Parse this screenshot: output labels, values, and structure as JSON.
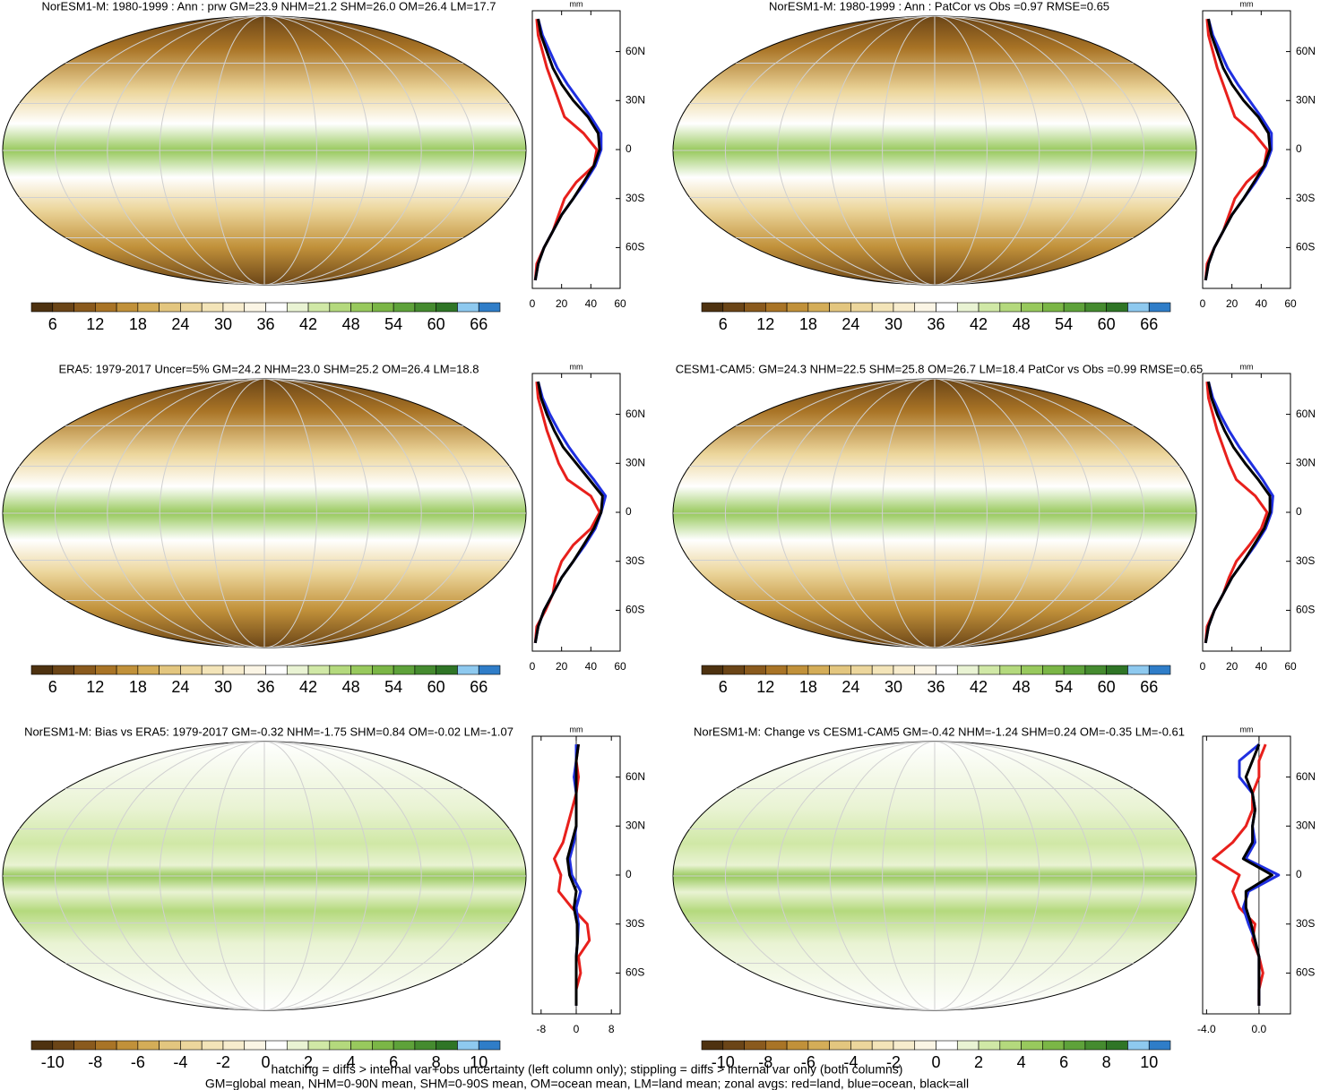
{
  "chart_data": [
    {
      "type": "line",
      "title": "NorESM1-M: 1980-1999 : Ann : prw GM=23.9 NHM=21.2 SHM=26.0 OM=26.4 LM=17.7",
      "unit": "mm",
      "y": [
        -80,
        -70,
        -60,
        -50,
        -40,
        -30,
        -20,
        -10,
        0,
        10,
        20,
        30,
        40,
        50,
        60,
        70,
        80
      ],
      "series": [
        {
          "name": "land",
          "color": "#e8201c",
          "values": [
            2,
            3,
            8,
            14,
            18,
            22,
            30,
            42,
            44,
            35,
            22,
            18,
            14,
            10,
            7,
            4,
            3
          ]
        },
        {
          "name": "ocean",
          "color": "#1f2fe0",
          "values": [
            2,
            4,
            8,
            14,
            20,
            28,
            36,
            43,
            47,
            47,
            40,
            32,
            24,
            17,
            12,
            7,
            4
          ]
        },
        {
          "name": "all",
          "color": "#000000",
          "values": [
            2,
            4,
            8,
            14,
            20,
            28,
            35,
            42,
            46,
            45,
            38,
            28,
            20,
            14,
            10,
            6,
            4
          ]
        }
      ],
      "xlim": [
        0,
        60
      ],
      "xticks": [
        0,
        20,
        40,
        60
      ],
      "ylim": [
        -85,
        85
      ],
      "yticks": [
        {
          "value": 60,
          "label": "60N"
        },
        {
          "value": 30,
          "label": "30N"
        },
        0,
        {
          "value": -30,
          "label": "30S"
        },
        {
          "value": -60,
          "label": "60S"
        }
      ],
      "colorbar": {
        "lim": [
          3,
          69
        ],
        "ticks": [
          6,
          12,
          18,
          24,
          30,
          36,
          42,
          48,
          54,
          60,
          66
        ],
        "colors": [
          "#4e3210",
          "#6b4517",
          "#8a5a1d",
          "#a97426",
          "#c1913a",
          "#d4ad58",
          "#e3c67f",
          "#ecd69c",
          "#f3e4b8",
          "#f7eccd",
          "#fbf5e5",
          "#ffffff",
          "#e9f3d3",
          "#d0e8a6",
          "#b4d97d",
          "#98c95d",
          "#7bb646",
          "#5ea23a",
          "#458b2f",
          "#2f7526",
          "#8ec9ef",
          "#2f7dc8"
        ]
      }
    },
    {
      "type": "line",
      "title": "NorESM1-M: 1980-1999 : Ann : PatCor vs Obs =0.97 RMSE=0.65",
      "unit": "mm",
      "y": [
        -80,
        -70,
        -60,
        -50,
        -40,
        -30,
        -20,
        -10,
        0,
        10,
        20,
        30,
        40,
        50,
        60,
        70,
        80
      ],
      "series": [
        {
          "name": "land",
          "color": "#e8201c",
          "values": [
            2,
            3,
            8,
            14,
            18,
            22,
            30,
            42,
            44,
            35,
            22,
            18,
            14,
            10,
            7,
            4,
            3
          ]
        },
        {
          "name": "ocean",
          "color": "#1f2fe0",
          "values": [
            2,
            4,
            8,
            14,
            20,
            28,
            36,
            43,
            47,
            47,
            40,
            32,
            24,
            17,
            12,
            7,
            4
          ]
        },
        {
          "name": "all",
          "color": "#000000",
          "values": [
            2,
            4,
            8,
            14,
            20,
            28,
            35,
            42,
            46,
            45,
            38,
            28,
            20,
            14,
            10,
            6,
            4
          ]
        }
      ],
      "xlim": [
        0,
        60
      ],
      "xticks": [
        0,
        20,
        40,
        60
      ],
      "ylim": [
        -85,
        85
      ],
      "yticks": [
        {
          "value": 60,
          "label": "60N"
        },
        {
          "value": 30,
          "label": "30N"
        },
        0,
        {
          "value": -30,
          "label": "30S"
        },
        {
          "value": -60,
          "label": "60S"
        }
      ],
      "colorbar": {
        "lim": [
          3,
          69
        ],
        "ticks": [
          6,
          12,
          18,
          24,
          30,
          36,
          42,
          48,
          54,
          60,
          66
        ],
        "colors": [
          "#4e3210",
          "#6b4517",
          "#8a5a1d",
          "#a97426",
          "#c1913a",
          "#d4ad58",
          "#e3c67f",
          "#ecd69c",
          "#f3e4b8",
          "#f7eccd",
          "#fbf5e5",
          "#ffffff",
          "#e9f3d3",
          "#d0e8a6",
          "#b4d97d",
          "#98c95d",
          "#7bb646",
          "#5ea23a",
          "#458b2f",
          "#2f7526",
          "#8ec9ef",
          "#2f7dc8"
        ]
      }
    },
    {
      "type": "line",
      "title": "ERA5: 1979-2017 Uncer=5% GM=24.2 NHM=23.0 SHM=25.2 OM=26.4 LM=18.8",
      "unit": "mm",
      "y": [
        -80,
        -70,
        -60,
        -50,
        -40,
        -30,
        -20,
        -10,
        0,
        10,
        20,
        30,
        40,
        50,
        60,
        70,
        80
      ],
      "series": [
        {
          "name": "land",
          "color": "#e8201c",
          "values": [
            2,
            3,
            9,
            14,
            16,
            20,
            28,
            40,
            46,
            40,
            24,
            18,
            14,
            10,
            7,
            4,
            3
          ]
        },
        {
          "name": "ocean",
          "color": "#1f2fe0",
          "values": [
            2,
            4,
            8,
            14,
            20,
            28,
            36,
            43,
            47,
            50,
            42,
            33,
            25,
            18,
            12,
            7,
            4
          ]
        },
        {
          "name": "all",
          "color": "#000000",
          "values": [
            2,
            4,
            8,
            14,
            20,
            28,
            35,
            42,
            47,
            48,
            39,
            30,
            21,
            15,
            10,
            6,
            4
          ]
        }
      ],
      "xlim": [
        0,
        60
      ],
      "xticks": [
        0,
        20,
        40,
        60
      ],
      "ylim": [
        -85,
        85
      ],
      "yticks": [
        {
          "value": 60,
          "label": "60N"
        },
        {
          "value": 30,
          "label": "30N"
        },
        0,
        {
          "value": -30,
          "label": "30S"
        },
        {
          "value": -60,
          "label": "60S"
        }
      ],
      "colorbar": {
        "lim": [
          3,
          69
        ],
        "ticks": [
          6,
          12,
          18,
          24,
          30,
          36,
          42,
          48,
          54,
          60,
          66
        ],
        "colors": [
          "#4e3210",
          "#6b4517",
          "#8a5a1d",
          "#a97426",
          "#c1913a",
          "#d4ad58",
          "#e3c67f",
          "#ecd69c",
          "#f3e4b8",
          "#f7eccd",
          "#fbf5e5",
          "#ffffff",
          "#e9f3d3",
          "#d0e8a6",
          "#b4d97d",
          "#98c95d",
          "#7bb646",
          "#5ea23a",
          "#458b2f",
          "#2f7526",
          "#8ec9ef",
          "#2f7dc8"
        ]
      }
    },
    {
      "type": "line",
      "title": "CESM1-CAM5: GM=24.3 NHM=22.5 SHM=25.8 OM=26.7 LM=18.4 PatCor vs Obs =0.99 RMSE=0.65",
      "unit": "mm",
      "y": [
        -80,
        -70,
        -60,
        -50,
        -40,
        -30,
        -20,
        -10,
        0,
        10,
        20,
        30,
        40,
        50,
        60,
        70,
        80
      ],
      "series": [
        {
          "name": "land",
          "color": "#e8201c",
          "values": [
            2,
            3,
            8,
            14,
            18,
            23,
            32,
            40,
            44,
            36,
            23,
            18,
            14,
            10,
            7,
            4,
            3
          ]
        },
        {
          "name": "ocean",
          "color": "#1f2fe0",
          "values": [
            2,
            4,
            8,
            14,
            20,
            28,
            36,
            43,
            47,
            48,
            41,
            33,
            25,
            18,
            12,
            7,
            4
          ]
        },
        {
          "name": "all",
          "color": "#000000",
          "values": [
            2,
            4,
            8,
            14,
            20,
            28,
            35,
            42,
            46,
            46,
            38,
            29,
            21,
            15,
            10,
            6,
            4
          ]
        }
      ],
      "xlim": [
        0,
        60
      ],
      "xticks": [
        0,
        20,
        40,
        60
      ],
      "ylim": [
        -85,
        85
      ],
      "yticks": [
        {
          "value": 60,
          "label": "60N"
        },
        {
          "value": 30,
          "label": "30N"
        },
        0,
        {
          "value": -30,
          "label": "30S"
        },
        {
          "value": -60,
          "label": "60S"
        }
      ],
      "colorbar": {
        "lim": [
          3,
          69
        ],
        "ticks": [
          6,
          12,
          18,
          24,
          30,
          36,
          42,
          48,
          54,
          60,
          66
        ],
        "colors": [
          "#4e3210",
          "#6b4517",
          "#8a5a1d",
          "#a97426",
          "#c1913a",
          "#d4ad58",
          "#e3c67f",
          "#ecd69c",
          "#f3e4b8",
          "#f7eccd",
          "#fbf5e5",
          "#ffffff",
          "#e9f3d3",
          "#d0e8a6",
          "#b4d97d",
          "#98c95d",
          "#7bb646",
          "#5ea23a",
          "#458b2f",
          "#2f7526",
          "#8ec9ef",
          "#2f7dc8"
        ]
      }
    },
    {
      "type": "line",
      "title": "NorESM1-M: Bias vs ERA5: 1979-2017 GM=-0.32 NHM=-1.75 SHM=0.84 OM=-0.02 LM=-1.07",
      "unit": "mm",
      "y": [
        -80,
        -70,
        -60,
        -50,
        -40,
        -30,
        -20,
        -10,
        0,
        10,
        20,
        30,
        40,
        50,
        60,
        70,
        80
      ],
      "series": [
        {
          "name": "land",
          "color": "#e8201c",
          "values": [
            0,
            0,
            1,
            0.5,
            3,
            2.5,
            -1,
            -4,
            -3.5,
            -5,
            -3,
            -2,
            -1,
            0,
            0.5,
            0,
            0.5
          ]
        },
        {
          "name": "ocean",
          "color": "#1f2fe0",
          "values": [
            0,
            0,
            0,
            0,
            0.3,
            0.5,
            0,
            1,
            -1,
            -1.5,
            -0.5,
            0,
            0,
            0,
            -0.5,
            0,
            0
          ]
        },
        {
          "name": "all",
          "color": "#000000",
          "values": [
            0,
            0,
            0,
            0,
            0.3,
            0.2,
            -0.5,
            0,
            -1.5,
            -2,
            -1,
            0,
            0,
            0,
            0,
            0,
            0.5
          ]
        }
      ],
      "xlim": [
        -10,
        10
      ],
      "xticks": [
        -8,
        0,
        8
      ],
      "ylim": [
        -85,
        85
      ],
      "yticks": [
        {
          "value": 60,
          "label": "60N"
        },
        {
          "value": 30,
          "label": "30N"
        },
        0,
        {
          "value": -30,
          "label": "30S"
        },
        {
          "value": -60,
          "label": "60S"
        }
      ],
      "colorbar": {
        "lim": [
          -11,
          11
        ],
        "ticks": [
          -10,
          -8,
          -6,
          -4,
          -2,
          0,
          2,
          4,
          6,
          8,
          10
        ],
        "colors": [
          "#4e3210",
          "#6b4517",
          "#8a5a1d",
          "#a97426",
          "#c1913a",
          "#d4ad58",
          "#e3c67f",
          "#ecd69c",
          "#f3e4b8",
          "#f7eccd",
          "#fbf5e5",
          "#ffffff",
          "#e9f3d3",
          "#d0e8a6",
          "#b4d97d",
          "#98c95d",
          "#7bb646",
          "#5ea23a",
          "#458b2f",
          "#2f7526",
          "#8ec9ef",
          "#2f7dc8"
        ]
      }
    },
    {
      "type": "line",
      "title": "NorESM1-M: Change vs CESM1-CAM5 GM=-0.42 NHM=-1.24 SHM=0.24 OM=-0.35 LM=-0.61",
      "unit": "mm",
      "y": [
        -80,
        -70,
        -60,
        -50,
        -40,
        -30,
        -20,
        -10,
        0,
        10,
        20,
        30,
        40,
        50,
        60,
        70,
        80
      ],
      "series": [
        {
          "name": "land",
          "color": "#e8201c",
          "values": [
            0,
            0,
            0.3,
            0,
            -0.5,
            -0.3,
            -1.5,
            -2,
            -1.5,
            -3.5,
            -2,
            -1,
            -0.5,
            -0.5,
            0,
            0,
            0.5
          ]
        },
        {
          "name": "ocean",
          "color": "#1f2fe0",
          "values": [
            0,
            0,
            0,
            0,
            -0.3,
            -0.8,
            -1.2,
            -0.8,
            1.5,
            -1,
            -0.3,
            -0.5,
            -0.3,
            -0.5,
            -1.5,
            -1.5,
            0
          ]
        },
        {
          "name": "all",
          "color": "#000000",
          "values": [
            0,
            0,
            0,
            0,
            -0.3,
            -0.6,
            -1,
            -1,
            1,
            -1.2,
            -0.5,
            -0.5,
            -0.3,
            -0.5,
            -1,
            -0.5,
            0
          ]
        }
      ],
      "xlim": [
        -4.3,
        2.4
      ],
      "xticks": [
        {
          "value": -4,
          "label": "-4.0"
        },
        {
          "value": 0,
          "label": "0.0"
        }
      ],
      "ylim": [
        -85,
        85
      ],
      "yticks": [
        {
          "value": 60,
          "label": "60N"
        },
        {
          "value": 30,
          "label": "30N"
        },
        0,
        {
          "value": -30,
          "label": "30S"
        },
        {
          "value": -60,
          "label": "60S"
        }
      ],
      "colorbar": {
        "lim": [
          -11,
          11
        ],
        "ticks": [
          -10,
          -8,
          -6,
          -4,
          -2,
          0,
          2,
          4,
          6,
          8,
          10
        ],
        "colors": [
          "#4e3210",
          "#6b4517",
          "#8a5a1d",
          "#a97426",
          "#c1913a",
          "#d4ad58",
          "#e3c67f",
          "#ecd69c",
          "#f3e4b8",
          "#f7eccd",
          "#fbf5e5",
          "#ffffff",
          "#e9f3d3",
          "#d0e8a6",
          "#b4d97d",
          "#98c95d",
          "#7bb646",
          "#5ea23a",
          "#458b2f",
          "#2f7526",
          "#8ec9ef",
          "#2f7dc8"
        ]
      }
    }
  ],
  "notes": [
    "hatching = diffs > internal var+obs uncertainty (left column only); stippling = diffs > internal var only (both columns)",
    "GM=global mean, NHM=0-90N mean, SHM=0-90S mean, OM=ocean mean, LM=land mean; zonal avgs: red=land, blue=ocean, black=all"
  ]
}
